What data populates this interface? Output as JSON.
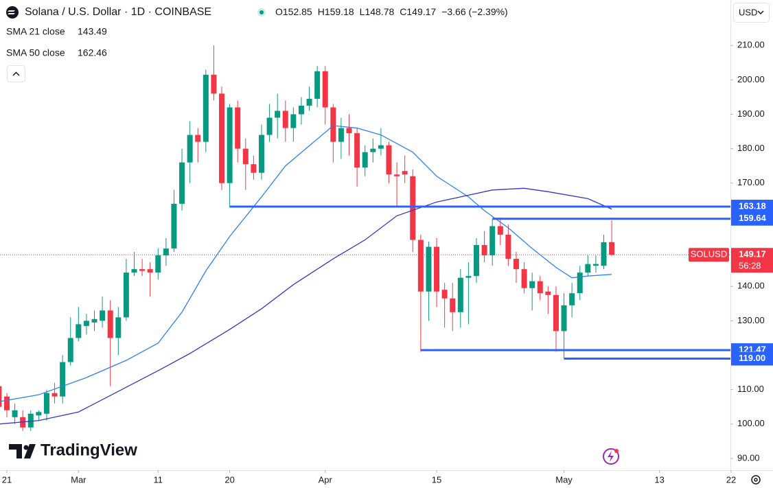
{
  "header": {
    "title": "Solana / U.S. Dollar · 1D · COINBASE",
    "ohlc": [
      "O152.85",
      "H159.18",
      "L148.78",
      "C149.17",
      "−3.66 (−2.39%)"
    ]
  },
  "currency": "USD",
  "logo": "TradingView",
  "chart_data": {
    "type": "candlestick",
    "categories": [
      "Feb 20",
      "Feb 21",
      "Feb 22",
      "Feb 23",
      "Feb 24",
      "Feb 25",
      "Feb 26",
      "Feb 27",
      "Feb 28",
      "Feb 29",
      "Mar 1",
      "Mar 2",
      "Mar 3",
      "Mar 4",
      "Mar 5",
      "Mar 6",
      "Mar 7",
      "Mar 8",
      "Mar 9",
      "Mar 10",
      "Mar 11",
      "Mar 12",
      "Mar 13",
      "Mar 14",
      "Mar 15",
      "Mar 16",
      "Mar 17",
      "Mar 18",
      "Mar 19",
      "Mar 20",
      "Mar 21",
      "Mar 22",
      "Mar 23",
      "Mar 24",
      "Mar 25",
      "Mar 26",
      "Mar 27",
      "Mar 28",
      "Mar 29",
      "Mar 30",
      "Mar 31",
      "Apr 1",
      "Apr 2",
      "Apr 3",
      "Apr 4",
      "Apr 5",
      "Apr 6",
      "Apr 7",
      "Apr 8",
      "Apr 9",
      "Apr 10",
      "Apr 11",
      "Apr 12",
      "Apr 13",
      "Apr 14",
      "Apr 15",
      "Apr 16",
      "Apr 17",
      "Apr 18",
      "Apr 19",
      "Apr 20",
      "Apr 21",
      "Apr 22",
      "Apr 23",
      "Apr 24",
      "Apr 25",
      "Apr 26",
      "Apr 27",
      "Apr 28",
      "Apr 29",
      "Apr 30",
      "May 1",
      "May 2",
      "May 3",
      "May 4",
      "May 5",
      "May 6",
      "May 7"
    ],
    "open": [
      111,
      108,
      102,
      102,
      99,
      102.5,
      103,
      109,
      108,
      118,
      125,
      128.5,
      129.5,
      130,
      133,
      125,
      131,
      144,
      145,
      145,
      144,
      149,
      151,
      164,
      176,
      184,
      182,
      201.5,
      196,
      170,
      192,
      180,
      175.5,
      173,
      184,
      189,
      191,
      186,
      190,
      192.5,
      194.5,
      202.5,
      192,
      182,
      186,
      184.5,
      174.5,
      179,
      180,
      181,
      172.5,
      173.5,
      172,
      153.5,
      138.5,
      151.5,
      139,
      136.5,
      132.5,
      142.5,
      143,
      152,
      149,
      157.5,
      155,
      148,
      145,
      139.5,
      141.5,
      138.5,
      137.5,
      127,
      134.5,
      138,
      144,
      146,
      146,
      152.85
    ],
    "high": [
      112,
      109,
      106,
      104,
      104,
      104,
      110,
      112,
      120,
      131,
      134,
      132,
      133,
      137,
      136,
      134,
      148,
      150,
      148,
      147,
      151,
      154,
      168,
      180,
      188,
      186,
      203,
      210,
      198,
      193,
      194,
      183,
      178,
      187,
      193,
      196,
      194,
      192,
      195,
      198,
      204,
      204,
      193,
      189,
      190,
      186,
      181,
      183,
      186,
      182,
      176,
      178,
      174,
      155,
      153,
      154,
      141,
      141,
      145,
      147,
      154,
      156,
      159.5,
      160,
      158,
      150,
      147,
      144,
      143,
      140,
      140,
      138,
      141,
      146,
      149,
      149,
      155,
      159.18
    ],
    "low": [
      102,
      102,
      100,
      98,
      98,
      101,
      101,
      106,
      106,
      117,
      124,
      126,
      127,
      128,
      111,
      120,
      130,
      143,
      143,
      137,
      142,
      146,
      150,
      162,
      170,
      176,
      179,
      194,
      168,
      163,
      176,
      168,
      171,
      171,
      182,
      183,
      182,
      182,
      187,
      191,
      192,
      187,
      176,
      177,
      178,
      169,
      172,
      176,
      178,
      170,
      163,
      170,
      150,
      121,
      130,
      134,
      128,
      127,
      128,
      129,
      141,
      147,
      146,
      152,
      146,
      141,
      138,
      133,
      136,
      132,
      121,
      119,
      131,
      136,
      143,
      144,
      145,
      148.78
    ],
    "close": [
      105,
      104,
      104,
      99,
      103,
      103.5,
      109,
      108,
      118,
      125,
      129,
      130,
      130.5,
      133,
      125,
      131,
      144,
      145,
      144.5,
      144,
      149,
      151,
      164,
      176,
      184,
      182,
      201.5,
      196,
      170,
      192,
      180,
      175.5,
      173,
      184,
      189,
      191,
      186,
      190,
      192.5,
      194.5,
      202.5,
      192,
      182,
      186,
      184.5,
      174.5,
      179,
      180,
      181,
      172.5,
      172,
      172.5,
      153.5,
      138.5,
      151.5,
      138.5,
      136.5,
      132.5,
      142.5,
      143,
      152,
      149,
      157.5,
      155,
      148,
      145,
      139.5,
      141.5,
      138,
      137.5,
      127,
      134.5,
      138,
      144,
      146.5,
      146.5,
      152.83,
      149.17
    ],
    "up_color": "#089981",
    "down_color": "#f23645",
    "series": [
      {
        "name": "SMA 21 close",
        "color": "#2f7ff5",
        "legend_value": 143.49,
        "x": [
          "Feb 20",
          "Feb 25",
          "Mar 2",
          "Mar 7",
          "Mar 11",
          "Mar 14",
          "Mar 17",
          "Mar 20",
          "Mar 24",
          "Mar 27",
          "Apr 2",
          "Apr 5",
          "Apr 8",
          "Apr 12",
          "Apr 15",
          "Apr 19",
          "Apr 21",
          "Apr 24",
          "Apr 27",
          "Apr 30",
          "May 2",
          "May 4",
          "May 7"
        ],
        "values": [
          106.5,
          108.5,
          113.5,
          118.5,
          123.5,
          132.5,
          144.5,
          154.5,
          166,
          175,
          186.7,
          186,
          184,
          179,
          172,
          166,
          162,
          157,
          151,
          145.5,
          142.5,
          143,
          143.49
        ]
      },
      {
        "name": "SMA 50 close",
        "color": "#3434c8",
        "legend_value": 162.46,
        "x": [
          "Feb 20",
          "Feb 25",
          "Mar 1",
          "Mar 6",
          "Mar 11",
          "Mar 15",
          "Mar 20",
          "Mar 24",
          "Mar 28",
          "Apr 2",
          "Apr 6",
          "Apr 10",
          "Apr 15",
          "Apr 19",
          "Apr 22",
          "Apr 26",
          "Apr 29",
          "May 4",
          "May 7"
        ],
        "values": [
          100,
          101,
          103.5,
          109.5,
          115.5,
          120.5,
          127.5,
          133.5,
          140.5,
          148,
          153.5,
          160.5,
          164.5,
          166.5,
          168,
          168.5,
          167.5,
          165.5,
          162.46
        ]
      }
    ],
    "levels": [
      {
        "value": 163.18,
        "start": "Mar 20"
      },
      {
        "value": 159.64,
        "start": "Apr 22"
      },
      {
        "value": 121.47,
        "start": "Apr 13"
      },
      {
        "value": 119,
        "label": "119.00",
        "start": "May 1"
      }
    ],
    "level_color": "#2962ff",
    "price_label": {
      "symbol": "SOLUSD",
      "value": 149.17,
      "countdown": "56:28"
    },
    "ylim": [
      86.6,
      223.2
    ],
    "yticks": [
      {
        "value": 90,
        "label": "90.00"
      },
      {
        "value": 100,
        "label": "100.00"
      },
      {
        "value": 110,
        "label": "110.00"
      },
      {
        "value": 120,
        "label": "120.00"
      },
      {
        "value": 130,
        "label": "130.00"
      },
      {
        "value": 140,
        "label": "140.00"
      },
      {
        "value": 150,
        "label": "150.00"
      },
      {
        "value": 160,
        "label": "160.00"
      },
      {
        "value": 170,
        "label": "170.00"
      },
      {
        "value": 180,
        "label": "180.00"
      },
      {
        "value": 190,
        "label": "190.00"
      },
      {
        "value": 200,
        "label": "200.00"
      },
      {
        "value": 210,
        "label": "210.00"
      }
    ],
    "xlim": [
      "Feb 20",
      "May 22"
    ],
    "xticks": [
      {
        "value": "Feb 21",
        "label": "21"
      },
      {
        "value": "Mar 1",
        "label": "Mar"
      },
      {
        "value": "Mar 11",
        "label": "11"
      },
      {
        "value": "Mar 20",
        "label": "20"
      },
      {
        "value": "Apr 1",
        "label": "Apr"
      },
      {
        "value": "Apr 15",
        "label": "15"
      },
      {
        "value": "May 1",
        "label": "May"
      },
      {
        "value": "May 13",
        "label": "13"
      },
      {
        "value": "May 22",
        "label": "22"
      }
    ]
  }
}
